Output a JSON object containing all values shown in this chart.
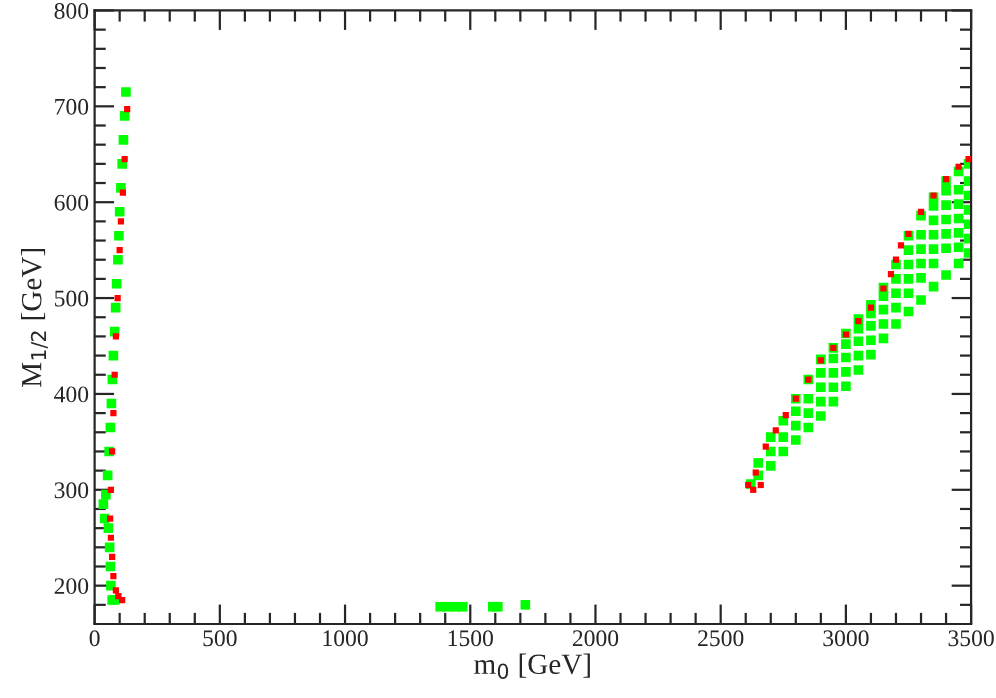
{
  "chart_data": {
    "type": "scatter",
    "xlabel": "m$_{0}$ [GeV]",
    "ylabel": "M$_{1/2}$ [GeV]",
    "marker": "square",
    "grid": false,
    "xlim": [
      0,
      3500
    ],
    "ylim": [
      160,
      800
    ],
    "xticks": [
      0,
      {
        "value": 100,
        "label": null
      },
      {
        "value": 200,
        "label": null
      },
      {
        "value": 300,
        "label": null
      },
      {
        "value": 400,
        "label": null
      },
      500,
      {
        "value": 600,
        "label": null
      },
      {
        "value": 700,
        "label": null
      },
      {
        "value": 800,
        "label": null
      },
      {
        "value": 900,
        "label": null
      },
      1000,
      {
        "value": 1100,
        "label": null
      },
      {
        "value": 1200,
        "label": null
      },
      {
        "value": 1300,
        "label": null
      },
      {
        "value": 1400,
        "label": null
      },
      1500,
      {
        "value": 1600,
        "label": null
      },
      {
        "value": 1700,
        "label": null
      },
      {
        "value": 1800,
        "label": null
      },
      {
        "value": 1900,
        "label": null
      },
      2000,
      {
        "value": 2100,
        "label": null
      },
      {
        "value": 2200,
        "label": null
      },
      {
        "value": 2300,
        "label": null
      },
      {
        "value": 2400,
        "label": null
      },
      2500,
      {
        "value": 2600,
        "label": null
      },
      {
        "value": 2700,
        "label": null
      },
      {
        "value": 2800,
        "label": null
      },
      {
        "value": 2900,
        "label": null
      },
      3000,
      {
        "value": 3100,
        "label": null
      },
      {
        "value": 3200,
        "label": null
      },
      {
        "value": 3300,
        "label": null
      },
      {
        "value": 3400,
        "label": null
      },
      3500
    ],
    "yticks": [
      {
        "value": 180,
        "label": null
      },
      200,
      {
        "value": 220,
        "label": null
      },
      {
        "value": 240,
        "label": null
      },
      {
        "value": 260,
        "label": null
      },
      {
        "value": 280,
        "label": null
      },
      300,
      {
        "value": 320,
        "label": null
      },
      {
        "value": 340,
        "label": null
      },
      {
        "value": 360,
        "label": null
      },
      {
        "value": 380,
        "label": null
      },
      400,
      {
        "value": 420,
        "label": null
      },
      {
        "value": 440,
        "label": null
      },
      {
        "value": 460,
        "label": null
      },
      {
        "value": 480,
        "label": null
      },
      500,
      {
        "value": 520,
        "label": null
      },
      {
        "value": 540,
        "label": null
      },
      {
        "value": 560,
        "label": null
      },
      {
        "value": 580,
        "label": null
      },
      600,
      {
        "value": 620,
        "label": null
      },
      {
        "value": 640,
        "label": null
      },
      {
        "value": 660,
        "label": null
      },
      {
        "value": 680,
        "label": null
      },
      700,
      {
        "value": 720,
        "label": null
      },
      {
        "value": 740,
        "label": null
      },
      {
        "value": 760,
        "label": null
      },
      {
        "value": 780,
        "label": null
      },
      800
    ],
    "series": [
      {
        "color": "#00ff00",
        "x": [
          125,
          120,
          115,
          110,
          105,
          100,
          97,
          93,
          88,
          84,
          80,
          75,
          71,
          67,
          63,
          58,
          52,
          45,
          35,
          40,
          55,
          60,
          63,
          65,
          70,
          80,
          1380,
          1410,
          1440,
          1470,
          1590,
          1610,
          1720,
          2620,
          2650,
          2650,
          2700,
          2700,
          2700,
          2750,
          2750,
          2750,
          2800,
          2800,
          2800,
          2800,
          2850,
          2850,
          2850,
          2850,
          2900,
          2900,
          2900,
          2900,
          2900,
          2950,
          2950,
          2950,
          2950,
          2950,
          3000,
          3000,
          3000,
          3000,
          3000,
          3050,
          3050,
          3050,
          3050,
          3050,
          3100,
          3100,
          3100,
          3100,
          3100,
          3150,
          3150,
          3150,
          3150,
          3150,
          3200,
          3200,
          3200,
          3200,
          3200,
          3250,
          3250,
          3250,
          3250,
          3250,
          3250,
          3300,
          3300,
          3300,
          3300,
          3300,
          3300,
          3350,
          3350,
          3350,
          3350,
          3350,
          3350,
          3350,
          3400,
          3400,
          3400,
          3400,
          3400,
          3400,
          3400,
          3450,
          3450,
          3450,
          3450,
          3450,
          3450,
          3450,
          3490,
          3490,
          3490,
          3490,
          3490,
          3490,
          3490
        ],
        "values": [
          715,
          690,
          665,
          640,
          615,
          590,
          565,
          540,
          515,
          490,
          465,
          440,
          415,
          390,
          365,
          340,
          315,
          295,
          285,
          270,
          260,
          240,
          220,
          200,
          185,
          185,
          178,
          178,
          178,
          178,
          178,
          178,
          180,
          306,
          315,
          328,
          325,
          340,
          355,
          340,
          355,
          372,
          352,
          367,
          382,
          395,
          365,
          380,
          395,
          415,
          377,
          392,
          407,
          422,
          436,
          392,
          407,
          422,
          437,
          448,
          408,
          423,
          438,
          452,
          463,
          425,
          440,
          455,
          468,
          478,
          441,
          456,
          471,
          484,
          493,
          458,
          473,
          488,
          502,
          511,
          473,
          490,
          505,
          520,
          535,
          486,
          505,
          520,
          535,
          550,
          565,
          498,
          521,
          536,
          551,
          566,
          586,
          512,
          536,
          551,
          566,
          581,
          596,
          605,
          524,
          552,
          567,
          582,
          597,
          612,
          622,
          536,
          553,
          568,
          583,
          598,
          613,
          632,
          547,
          562,
          577,
          592,
          607,
          622,
          640
        ]
      },
      {
        "color": "#ff0000",
        "x": [
          130,
          120,
          113,
          105,
          100,
          92,
          85,
          80,
          75,
          70,
          65,
          62,
          65,
          70,
          75,
          85,
          95,
          110,
          2610,
          2630,
          2660,
          2640,
          2680,
          2720,
          2760,
          2800,
          2850,
          2900,
          2950,
          3000,
          3050,
          3100,
          3150,
          3180,
          3200,
          3220,
          3250,
          3300,
          3350,
          3400,
          3450,
          3490
        ],
        "values": [
          697,
          645,
          610,
          580,
          550,
          500,
          460,
          420,
          380,
          340,
          300,
          270,
          250,
          230,
          210,
          195,
          189,
          185,
          305,
          300,
          305,
          318,
          345,
          362,
          378,
          395,
          415,
          435,
          448,
          462,
          476,
          490,
          510,
          525,
          540,
          555,
          567,
          590,
          607,
          624,
          637,
          645
        ]
      }
    ]
  }
}
